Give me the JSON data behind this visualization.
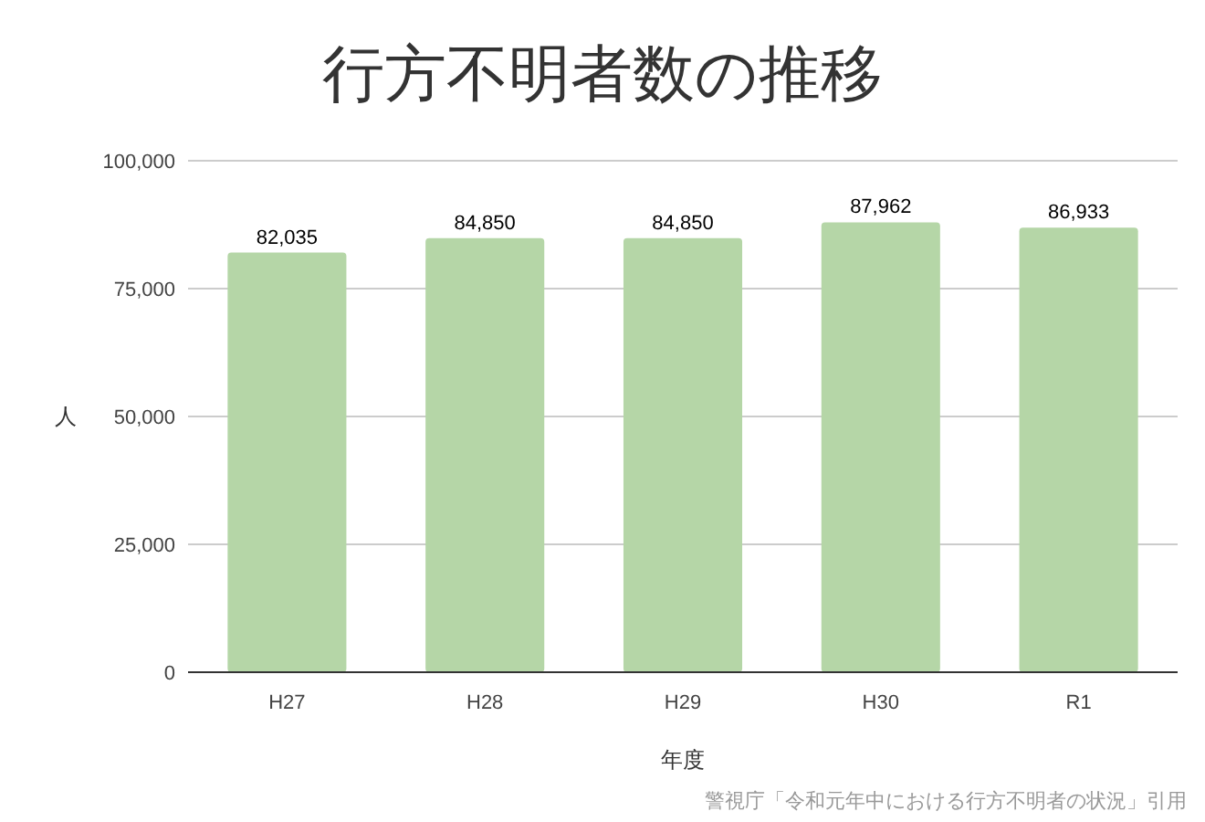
{
  "chart_data": {
    "type": "bar",
    "title": "行方不明者数の推移",
    "xlabel": "年度",
    "ylabel": "人",
    "categories": [
      "H27",
      "H28",
      "H29",
      "H30",
      "R1"
    ],
    "values": [
      82035,
      84850,
      84850,
      87962,
      86933
    ],
    "color": "#b5d6a7",
    "ylim": [
      0,
      100000
    ],
    "yticks": [
      {
        "value": 0,
        "label": "0"
      },
      {
        "value": 25000,
        "label": "25,000"
      },
      {
        "value": 50000,
        "label": "50,000"
      },
      {
        "value": 75000,
        "label": "75,000"
      },
      {
        "value": 100000,
        "label": "100,000"
      }
    ],
    "grid": "y",
    "value_labels": [
      "82,035",
      "84,850",
      "84,850",
      "87,962",
      "86,933"
    ],
    "annotations": [
      "警視庁「令和元年中における行方不明者の状況」引用"
    ]
  }
}
